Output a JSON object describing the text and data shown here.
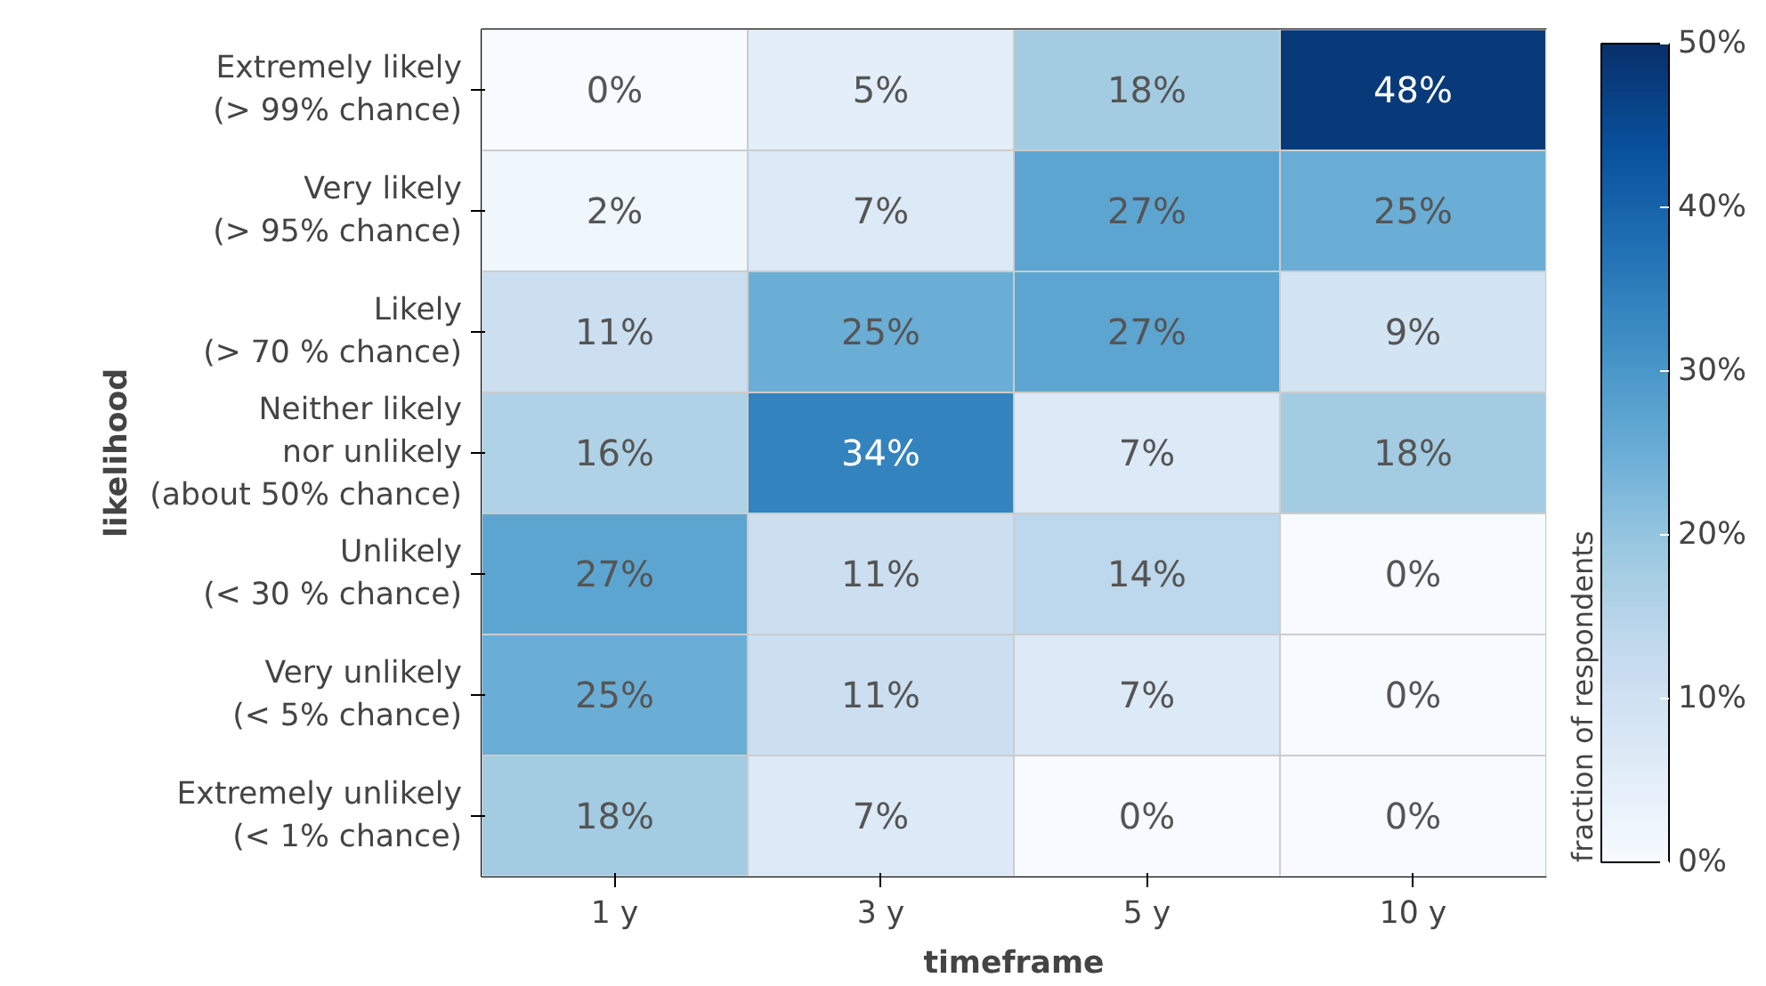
{
  "chart_data": {
    "type": "heatmap",
    "xlabel": "timeframe",
    "ylabel": "likelihood",
    "clabel": "fraction of respondents",
    "categories": [
      "1 y",
      "3 y",
      "5 y",
      "10 y"
    ],
    "y_categories": [
      "Extremely likely\n(> 99% chance)",
      "Very likely\n(> 95% chance)",
      "Likely\n(> 70 % chance)",
      "Neither likely\nnor unlikely\n(about 50% chance)",
      "Unlikely\n(< 30 % chance)",
      "Very unlikely\n(< 5% chance)",
      "Extremely unlikely\n(< 1% chance)"
    ],
    "cells": [
      [
        0,
        5,
        18,
        48
      ],
      [
        2,
        7,
        27,
        25
      ],
      [
        11,
        25,
        27,
        9
      ],
      [
        16,
        34,
        7,
        18
      ],
      [
        27,
        11,
        14,
        0
      ],
      [
        25,
        11,
        7,
        0
      ],
      [
        18,
        7,
        0,
        0
      ]
    ],
    "cell_labels": [
      [
        "0%",
        "5%",
        "18%",
        "48%"
      ],
      [
        "2%",
        "7%",
        "27%",
        "25%"
      ],
      [
        "11%",
        "25%",
        "27%",
        "9%"
      ],
      [
        "16%",
        "34%",
        "7%",
        "18%"
      ],
      [
        "27%",
        "11%",
        "14%",
        "0%"
      ],
      [
        "25%",
        "11%",
        "7%",
        "0%"
      ],
      [
        "18%",
        "7%",
        "0%",
        "0%"
      ]
    ],
    "clim": [
      0,
      50
    ],
    "cticks": [
      {
        "value": 0,
        "label": "0%"
      },
      {
        "value": 10,
        "label": "10%"
      },
      {
        "value": 20,
        "label": "20%"
      },
      {
        "value": 30,
        "label": "30%"
      },
      {
        "value": 40,
        "label": "40%"
      },
      {
        "value": 50,
        "label": "50%"
      }
    ]
  }
}
